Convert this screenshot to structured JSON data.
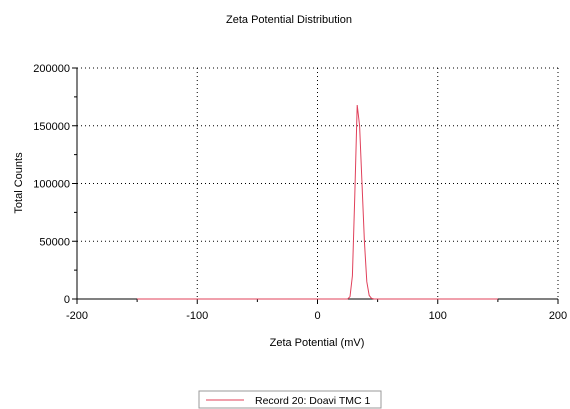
{
  "chart_data": {
    "type": "line",
    "title": "Zeta Potential Distribution",
    "xlabel": "Zeta Potential (mV)",
    "ylabel": "Total Counts",
    "xlim": [
      -200,
      200
    ],
    "ylim": [
      0,
      200000
    ],
    "x_ticks": [
      -200,
      -100,
      0,
      100,
      200
    ],
    "x_tick_labels": [
      "-200",
      "-100",
      "0",
      "100",
      "200"
    ],
    "y_ticks": [
      0,
      50000,
      100000,
      150000,
      200000
    ],
    "y_tick_labels": [
      "0",
      "50000",
      "100000",
      "150000",
      "200000"
    ],
    "grid": true,
    "legend_position": "bottom-center",
    "series": [
      {
        "name": "Record 20: Doavi TMC 1",
        "color": "#e0405a",
        "x": [
          -150,
          25,
          27,
          29,
          31,
          33,
          35,
          37,
          39,
          41,
          43,
          45,
          47,
          49,
          150
        ],
        "y": [
          0,
          0,
          2000,
          20000,
          90000,
          168000,
          150000,
          100000,
          50000,
          15000,
          3000,
          500,
          0,
          0,
          0
        ]
      }
    ]
  }
}
